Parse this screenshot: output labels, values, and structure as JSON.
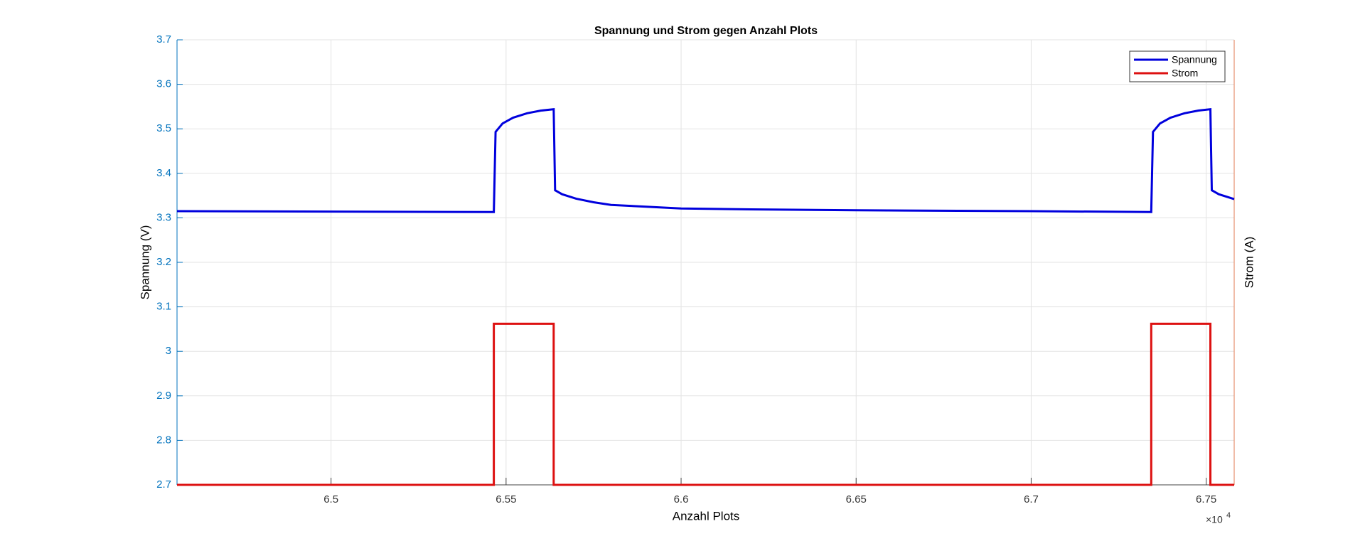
{
  "chart_data": {
    "type": "line",
    "title": "Spannung und Strom gegen Anzahl Plots",
    "xlabel": "Anzahl Plots",
    "ylabel": "Spannung (V)",
    "y2label": "Strom (A)",
    "x_multiplier": {
      "base": "×10",
      "exponent": "4"
    },
    "xlim": [
      64560,
      67580
    ],
    "xticks": [
      {
        "value": 65000,
        "label": "6.5"
      },
      {
        "value": 65500,
        "label": "6.55"
      },
      {
        "value": 66000,
        "label": "6.6"
      },
      {
        "value": 66500,
        "label": "6.65"
      },
      {
        "value": 67000,
        "label": "6.7"
      },
      {
        "value": 67500,
        "label": "6.75"
      }
    ],
    "ylim": [
      2.7,
      3.7
    ],
    "yticks": [
      2.7,
      2.8,
      2.9,
      3,
      3.1,
      3.2,
      3.3,
      3.4,
      3.5,
      3.6,
      3.7
    ],
    "y2lim": [
      0,
      1
    ],
    "grid": true,
    "legend": "upper right",
    "series": [
      {
        "name": "Spannung",
        "color": "#0000dd",
        "x": [
          64560,
          65000,
          65465,
          65470,
          65490,
          65520,
          65560,
          65600,
          65636,
          65640,
          65660,
          65700,
          65750,
          65800,
          65900,
          66000,
          66200,
          66500,
          67000,
          67343,
          67348,
          67368,
          67398,
          67438,
          67478,
          67512,
          67516,
          67536,
          67576,
          67580
        ],
        "values": [
          3.315,
          3.314,
          3.313,
          3.493,
          3.512,
          3.525,
          3.535,
          3.541,
          3.544,
          3.362,
          3.353,
          3.343,
          3.335,
          3.329,
          3.325,
          3.321,
          3.319,
          3.317,
          3.315,
          3.313,
          3.493,
          3.512,
          3.525,
          3.535,
          3.541,
          3.544,
          3.362,
          3.353,
          3.343,
          3.342
        ]
      },
      {
        "name": "Strom",
        "color": "#dd1111",
        "axis": "y2",
        "x": [
          64560,
          65465,
          65465,
          65636,
          65636,
          67343,
          67343,
          67512,
          67512,
          67580
        ],
        "values": [
          0,
          0,
          0.362,
          0.362,
          0,
          0,
          0.362,
          0.362,
          0,
          0
        ]
      }
    ]
  }
}
